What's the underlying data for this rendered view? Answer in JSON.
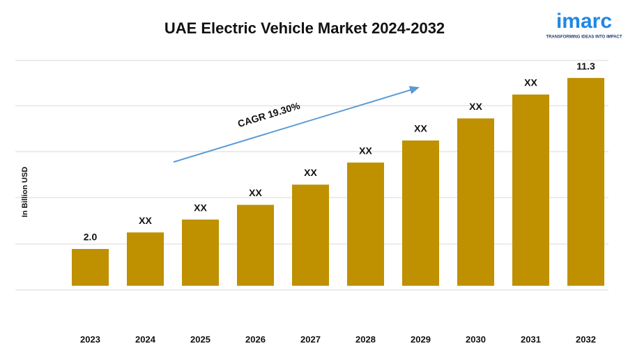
{
  "chart_data": {
    "type": "bar",
    "title": "UAE Electric Vehicle Market 2024-2032",
    "y_label": "In Billion USD",
    "annotation": "CAGR 19.30%",
    "logo": {
      "name": "imarc",
      "tagline": "TRANSFORMING IDEAS INTO IMPACT"
    },
    "categories": [
      "2023",
      "2024",
      "2025",
      "2026",
      "2027",
      "2028",
      "2029",
      "2030",
      "2031",
      "2032"
    ],
    "values": [
      2.0,
      2.9,
      3.6,
      4.4,
      5.5,
      6.7,
      7.9,
      9.1,
      10.4,
      11.3
    ],
    "value_labels": [
      "2.0",
      "XX",
      "XX",
      "XX",
      "XX",
      "XX",
      "XX",
      "XX",
      "XX",
      "11.3"
    ],
    "color": "#bf9000",
    "ylim": [
      -2.35,
      12.25
    ],
    "grid": true
  }
}
